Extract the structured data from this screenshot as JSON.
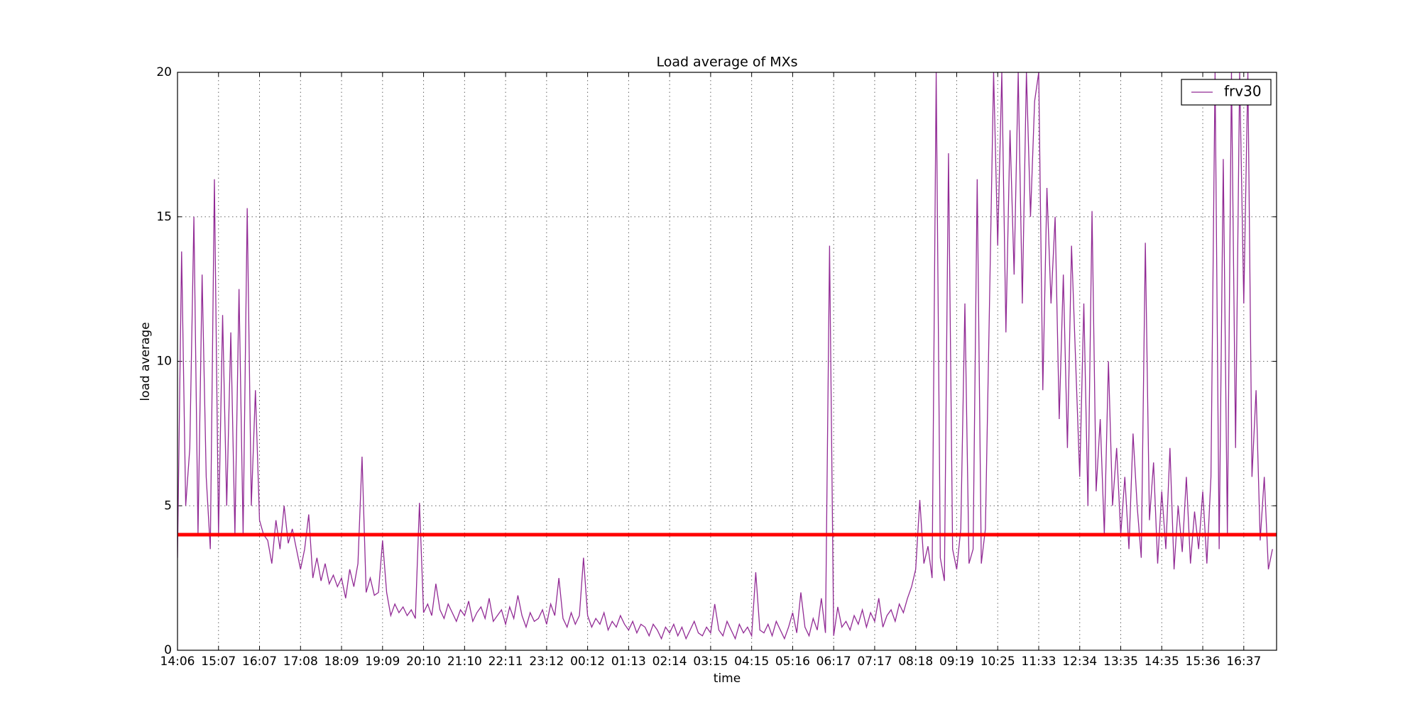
{
  "chart_data": {
    "type": "line",
    "title": "Load average of MXs",
    "x_label": "time",
    "y_label": "load average",
    "xlim": [
      0,
      26.8
    ],
    "ylim": [
      0,
      20
    ],
    "xticks": [
      {
        "value": 0,
        "label": "14:06"
      },
      {
        "value": 1,
        "label": "15:07"
      },
      {
        "value": 2,
        "label": "16:07"
      },
      {
        "value": 3,
        "label": "17:08"
      },
      {
        "value": 4,
        "label": "18:09"
      },
      {
        "value": 5,
        "label": "19:09"
      },
      {
        "value": 6,
        "label": "20:10"
      },
      {
        "value": 7,
        "label": "21:10"
      },
      {
        "value": 8,
        "label": "22:11"
      },
      {
        "value": 9,
        "label": "23:12"
      },
      {
        "value": 10,
        "label": "00:12"
      },
      {
        "value": 11,
        "label": "01:13"
      },
      {
        "value": 12,
        "label": "02:14"
      },
      {
        "value": 13,
        "label": "03:15"
      },
      {
        "value": 14,
        "label": "04:15"
      },
      {
        "value": 15,
        "label": "05:16"
      },
      {
        "value": 16,
        "label": "06:17"
      },
      {
        "value": 17,
        "label": "07:17"
      },
      {
        "value": 18,
        "label": "08:18"
      },
      {
        "value": 19,
        "label": "09:19"
      },
      {
        "value": 20,
        "label": "10:25"
      },
      {
        "value": 21,
        "label": "11:33"
      },
      {
        "value": 22,
        "label": "12:34"
      },
      {
        "value": 23,
        "label": "13:35"
      },
      {
        "value": 24,
        "label": "14:35"
      },
      {
        "value": 25,
        "label": "15:36"
      },
      {
        "value": 26,
        "label": "16:37"
      }
    ],
    "yticks": [
      0,
      5,
      10,
      15,
      20
    ],
    "grid": true,
    "legend_position": "upper right",
    "hlines": [
      {
        "y": 4,
        "color": "#ff0000"
      }
    ],
    "x": [
      0,
      0.1,
      0.2,
      0.3,
      0.4,
      0.5,
      0.6,
      0.7,
      0.8,
      0.9,
      1,
      1.1,
      1.2,
      1.3,
      1.4,
      1.5,
      1.6,
      1.7,
      1.8,
      1.9,
      2,
      2.1,
      2.2,
      2.3,
      2.4,
      2.5,
      2.6,
      2.7,
      2.8,
      2.9,
      3,
      3.1,
      3.2,
      3.3,
      3.4,
      3.5,
      3.6,
      3.7,
      3.8,
      3.9,
      4,
      4.1,
      4.2,
      4.3,
      4.4,
      4.5,
      4.6,
      4.7,
      4.8,
      4.9,
      5,
      5.1,
      5.2,
      5.3,
      5.4,
      5.5,
      5.6,
      5.7,
      5.8,
      5.9,
      6,
      6.1,
      6.2,
      6.3,
      6.4,
      6.5,
      6.6,
      6.7,
      6.8,
      6.9,
      7,
      7.1,
      7.2,
      7.3,
      7.4,
      7.5,
      7.6,
      7.7,
      7.8,
      7.9,
      8,
      8.1,
      8.2,
      8.3,
      8.4,
      8.5,
      8.6,
      8.7,
      8.8,
      8.9,
      9,
      9.1,
      9.2,
      9.3,
      9.4,
      9.5,
      9.6,
      9.7,
      9.8,
      9.9,
      10,
      10.1,
      10.2,
      10.3,
      10.4,
      10.5,
      10.6,
      10.7,
      10.8,
      10.9,
      11,
      11.1,
      11.2,
      11.3,
      11.4,
      11.5,
      11.6,
      11.7,
      11.8,
      11.9,
      12,
      12.1,
      12.2,
      12.3,
      12.4,
      12.5,
      12.6,
      12.7,
      12.8,
      12.9,
      13,
      13.1,
      13.2,
      13.3,
      13.4,
      13.5,
      13.6,
      13.7,
      13.8,
      13.9,
      14,
      14.1,
      14.2,
      14.3,
      14.4,
      14.5,
      14.6,
      14.7,
      14.8,
      14.9,
      15,
      15.1,
      15.2,
      15.3,
      15.4,
      15.5,
      15.6,
      15.7,
      15.8,
      15.9,
      16,
      16.1,
      16.2,
      16.3,
      16.4,
      16.5,
      16.6,
      16.7,
      16.8,
      16.9,
      17,
      17.1,
      17.2,
      17.3,
      17.4,
      17.5,
      17.6,
      17.7,
      17.8,
      17.9,
      18,
      18.1,
      18.2,
      18.3,
      18.4,
      18.5,
      18.6,
      18.7,
      18.8,
      18.9,
      19,
      19.1,
      19.2,
      19.3,
      19.4,
      19.5,
      19.6,
      19.7,
      19.8,
      19.9,
      20,
      20.1,
      20.2,
      20.3,
      20.4,
      20.5,
      20.6,
      20.7,
      20.8,
      20.9,
      21,
      21.1,
      21.2,
      21.3,
      21.4,
      21.5,
      21.6,
      21.7,
      21.8,
      21.9,
      22,
      22.1,
      22.2,
      22.3,
      22.4,
      22.5,
      22.6,
      22.7,
      22.8,
      22.9,
      23,
      23.1,
      23.2,
      23.3,
      23.4,
      23.5,
      23.6,
      23.7,
      23.8,
      23.9,
      24,
      24.1,
      24.2,
      24.3,
      24.4,
      24.5,
      24.6,
      24.7,
      24.8,
      24.9,
      25,
      25.1,
      25.2,
      25.3,
      25.4,
      25.5,
      25.6,
      25.7,
      25.8,
      25.9,
      26,
      26.1,
      26.2,
      26.3,
      26.4,
      26.5,
      26.6,
      26.7
    ],
    "series": [
      {
        "name": "frv30",
        "color": "#922b95",
        "values": [
          3.2,
          13.8,
          5,
          7,
          15,
          4,
          13,
          6,
          3.5,
          16.3,
          4,
          11.6,
          5,
          11,
          4,
          12.5,
          4,
          15.3,
          5,
          9,
          4.5,
          4,
          3.8,
          3,
          4.5,
          3.5,
          5,
          3.7,
          4.2,
          3.5,
          2.8,
          3.5,
          4.7,
          2.5,
          3.2,
          2.4,
          3,
          2.3,
          2.6,
          2.2,
          2.5,
          1.8,
          2.8,
          2.2,
          3,
          6.7,
          2,
          2.5,
          1.9,
          2,
          3.8,
          2,
          1.2,
          1.6,
          1.3,
          1.5,
          1.2,
          1.4,
          1.1,
          5.1,
          1.3,
          1.6,
          1.2,
          2.3,
          1.4,
          1.1,
          1.6,
          1.3,
          1,
          1.4,
          1.2,
          1.7,
          1,
          1.3,
          1.5,
          1.1,
          1.8,
          1,
          1.2,
          1.4,
          0.9,
          1.5,
          1.1,
          1.9,
          1.2,
          0.8,
          1.3,
          1,
          1.1,
          1.4,
          0.9,
          1.6,
          1.2,
          2.5,
          1.1,
          0.8,
          1.3,
          0.9,
          1.2,
          3.2,
          1.2,
          0.8,
          1.1,
          0.9,
          1.3,
          0.7,
          1,
          0.8,
          1.2,
          0.9,
          0.7,
          1,
          0.6,
          0.9,
          0.8,
          0.5,
          0.9,
          0.7,
          0.4,
          0.8,
          0.6,
          0.9,
          0.5,
          0.8,
          0.4,
          0.7,
          1,
          0.6,
          0.5,
          0.8,
          0.6,
          1.6,
          0.7,
          0.5,
          1,
          0.7,
          0.4,
          0.9,
          0.6,
          0.8,
          0.5,
          2.7,
          0.7,
          0.6,
          0.9,
          0.5,
          1,
          0.7,
          0.4,
          0.8,
          1.3,
          0.6,
          2,
          0.8,
          0.5,
          1.1,
          0.7,
          1.8,
          0.6,
          14,
          0.5,
          1.5,
          0.8,
          1,
          0.7,
          1.2,
          0.9,
          1.4,
          0.8,
          1.3,
          1,
          1.8,
          0.8,
          1.2,
          1.4,
          1,
          1.6,
          1.3,
          1.8,
          2.2,
          2.8,
          5.2,
          3,
          3.6,
          2.5,
          20,
          3.2,
          2.4,
          17.2,
          3.5,
          2.8,
          4.2,
          12,
          3,
          3.5,
          16.3,
          3,
          4.2,
          12,
          20,
          14,
          20,
          11,
          18,
          13,
          20,
          12,
          20,
          15,
          19,
          20,
          9,
          16,
          12,
          15,
          8,
          13,
          7,
          14,
          10,
          6,
          12,
          5,
          15.2,
          5.5,
          8,
          4,
          10,
          5,
          7,
          4,
          6,
          3.5,
          7.5,
          5,
          3.2,
          14.1,
          4.5,
          6.5,
          3,
          5.5,
          3.5,
          7,
          2.8,
          5,
          3.4,
          6,
          3,
          4.8,
          3.5,
          5.5,
          3,
          6,
          20,
          3.5,
          17,
          4,
          20,
          7,
          20,
          12,
          20,
          6,
          9,
          3.8,
          6,
          2.8,
          3.5
        ]
      }
    ]
  }
}
